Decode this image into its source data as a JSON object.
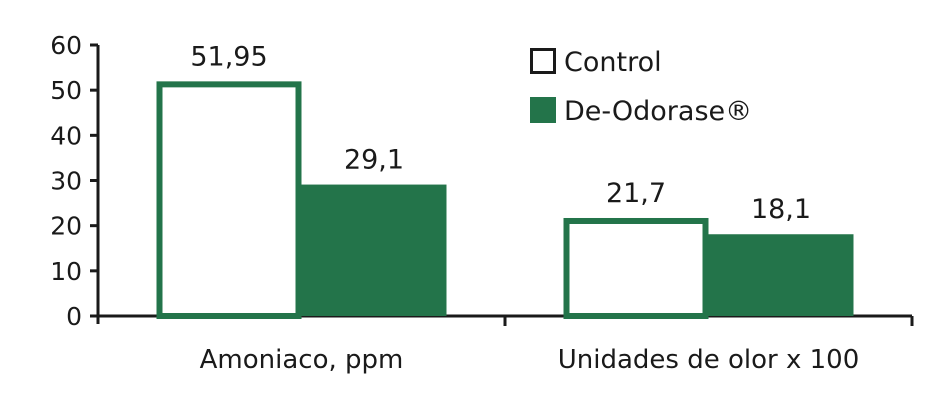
{
  "chart_data": {
    "type": "bar",
    "categories": [
      "Amoniaco, ppm",
      "Unidades de olor x 100"
    ],
    "series": [
      {
        "name": "Control",
        "values": [
          51.95,
          21.7
        ],
        "labels": [
          "51,95",
          "21,7"
        ],
        "color": "#ffffff",
        "stroke": "#23744a"
      },
      {
        "name": "De-Odorase®",
        "values": [
          29.1,
          18.1
        ],
        "labels": [
          "29,1",
          "18,1"
        ],
        "color": "#23744a",
        "stroke": "#23744a"
      }
    ],
    "ylim": [
      0,
      60
    ],
    "yticks": [
      0,
      10,
      20,
      30,
      40,
      50,
      60
    ],
    "grid": false,
    "legend_position": "top-right",
    "title": "",
    "xlabel": "",
    "ylabel": ""
  }
}
